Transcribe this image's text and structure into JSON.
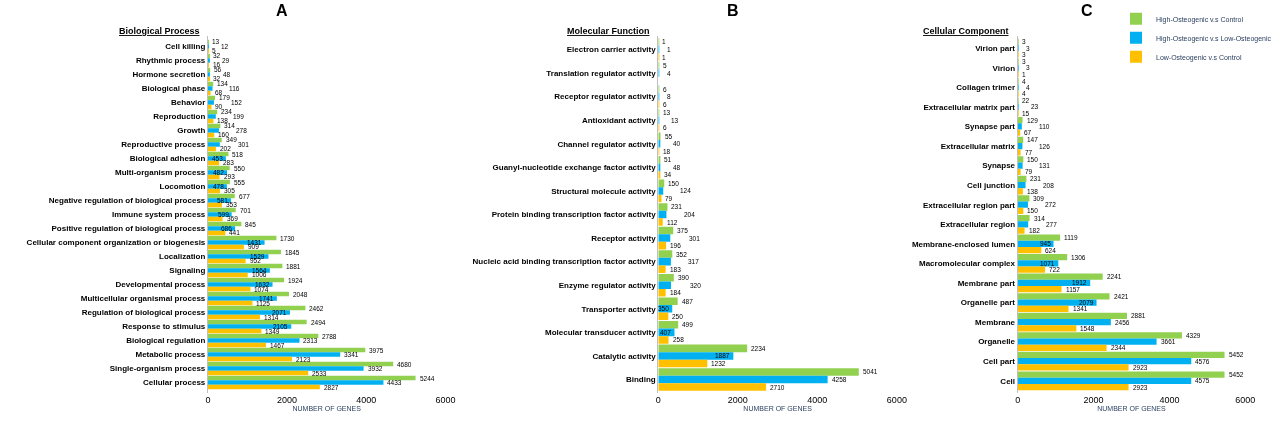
{
  "chart_data": [
    {
      "type": "bar",
      "orientation": "horizontal",
      "title": "A",
      "subtitle": "Biological Process",
      "xlabel": "NUMBER OF GENES",
      "categories": [
        "Cell killing",
        "Rhythmic process",
        "Hormone secretion",
        "Biological phase",
        "Behavior",
        "Reproduction",
        "Growth",
        "Reproductive process",
        "Biological adhesion",
        "Multi-organism process",
        "Locomotion",
        "Negative regulation of biological process",
        "Immune system process",
        "Positive regulation of biological process",
        "Cellular component organization or biogenesis",
        "Localization",
        "Signaling",
        "Developmental process",
        "Multicellular organismal process",
        "Regulation of biological process",
        "Response to stimulus",
        "Biological regulation",
        "Metabolic process",
        "Single-organism process",
        "Cellular process"
      ],
      "series": [
        {
          "color": "#92d050",
          "values": [
            13,
            32,
            56,
            134,
            179,
            234,
            314,
            349,
            518,
            550,
            555,
            677,
            701,
            845,
            1730,
            1845,
            1881,
            1924,
            2048,
            2462,
            2494,
            2788,
            3975,
            4680,
            5244
          ]
        },
        {
          "color": "#00b0f0",
          "values": [
            12,
            29,
            48,
            116,
            152,
            199,
            278,
            301,
            453,
            482,
            478,
            581,
            599,
            686,
            1431,
            1529,
            1564,
            1632,
            1741,
            2071,
            2105,
            2313,
            3341,
            3932,
            4433
          ]
        },
        {
          "color": "#ffc000",
          "values": [
            5,
            16,
            32,
            68,
            90,
            138,
            160,
            202,
            283,
            293,
            305,
            353,
            369,
            441,
            909,
            952,
            1006,
            1074,
            1125,
            1314,
            1349,
            1467,
            2123,
            2533,
            2827
          ]
        }
      ],
      "xlim": [
        0,
        6000
      ],
      "xticks": [
        0,
        2000,
        4000,
        6000
      ],
      "data_labels": true
    },
    {
      "type": "bar",
      "orientation": "horizontal",
      "title": "B",
      "subtitle": "Molecular Function",
      "xlabel": "NUMBER OF GENES",
      "categories": [
        "Electron carrier activity",
        "Translation regulator activity",
        "Receptor regulator activity",
        "Antioxidant activity",
        "Channel regulator activity",
        "Guanyl-nucleotide exchange factor activity",
        "Structural molecule activity",
        "Protein binding transcription factor activity",
        "Receptor activity",
        "Nucleic acid binding transcription factor activity",
        "Enzyme regulator activity",
        "Transporter activity",
        "Molecular transducer activity",
        "Catalytic activity",
        "Binding"
      ],
      "series": [
        {
          "color": "#92d050",
          "values": [
            1,
            5,
            6,
            13,
            55,
            51,
            150,
            231,
            375,
            352,
            390,
            487,
            499,
            2234,
            5041
          ]
        },
        {
          "color": "#00b0f0",
          "values": [
            1,
            4,
            8,
            13,
            40,
            48,
            124,
            204,
            301,
            317,
            320,
            350,
            407,
            1887,
            4258
          ]
        },
        {
          "color": "#ffc000",
          "values": [
            1,
            null,
            6,
            6,
            18,
            34,
            79,
            112,
            196,
            183,
            184,
            250,
            258,
            1232,
            2710
          ]
        }
      ],
      "xlim": [
        0,
        6000
      ],
      "xticks": [
        0,
        2000,
        4000,
        6000
      ],
      "data_labels": true
    },
    {
      "type": "bar",
      "orientation": "horizontal",
      "title": "C",
      "subtitle": "Cellular Component",
      "xlabel": "NUMBER OF GENES",
      "categories": [
        "Virion part",
        "Virion",
        "Collagen trimer",
        "Extracellular matrix part",
        "Synapse part",
        "Extracellular matrix",
        "Synapse",
        "Cell junction",
        "Extracellular region part",
        "Extracellular region",
        "Membrane-enclosed lumen",
        "Macromolecular complex",
        "Membrane part",
        "Organelle part",
        "Membrane",
        "Organelle",
        "Cell part",
        "Cell"
      ],
      "series": [
        {
          "name": "High-Osteogenic v.s Control",
          "color": "#92d050",
          "values": [
            3,
            3,
            4,
            22,
            129,
            147,
            150,
            231,
            309,
            314,
            1119,
            1306,
            2241,
            2421,
            2881,
            4329,
            5452,
            5452
          ]
        },
        {
          "name": "High-Osteogenic v.s Low-Osteogenic",
          "color": "#00b0f0",
          "values": [
            3,
            3,
            4,
            23,
            110,
            126,
            131,
            208,
            272,
            277,
            945,
            1071,
            1912,
            2079,
            2456,
            3661,
            4576,
            4575
          ]
        },
        {
          "name": "Low-Osteogenic v.s Control",
          "color": "#ffc000",
          "values": [
            3,
            1,
            4,
            15,
            67,
            77,
            79,
            138,
            150,
            182,
            624,
            722,
            1157,
            1341,
            1548,
            2344,
            2923,
            2923
          ]
        }
      ],
      "xlim": [
        0,
        6000
      ],
      "xticks": [
        0,
        2000,
        4000,
        6000
      ],
      "data_labels": true,
      "legend": "top right"
    }
  ]
}
